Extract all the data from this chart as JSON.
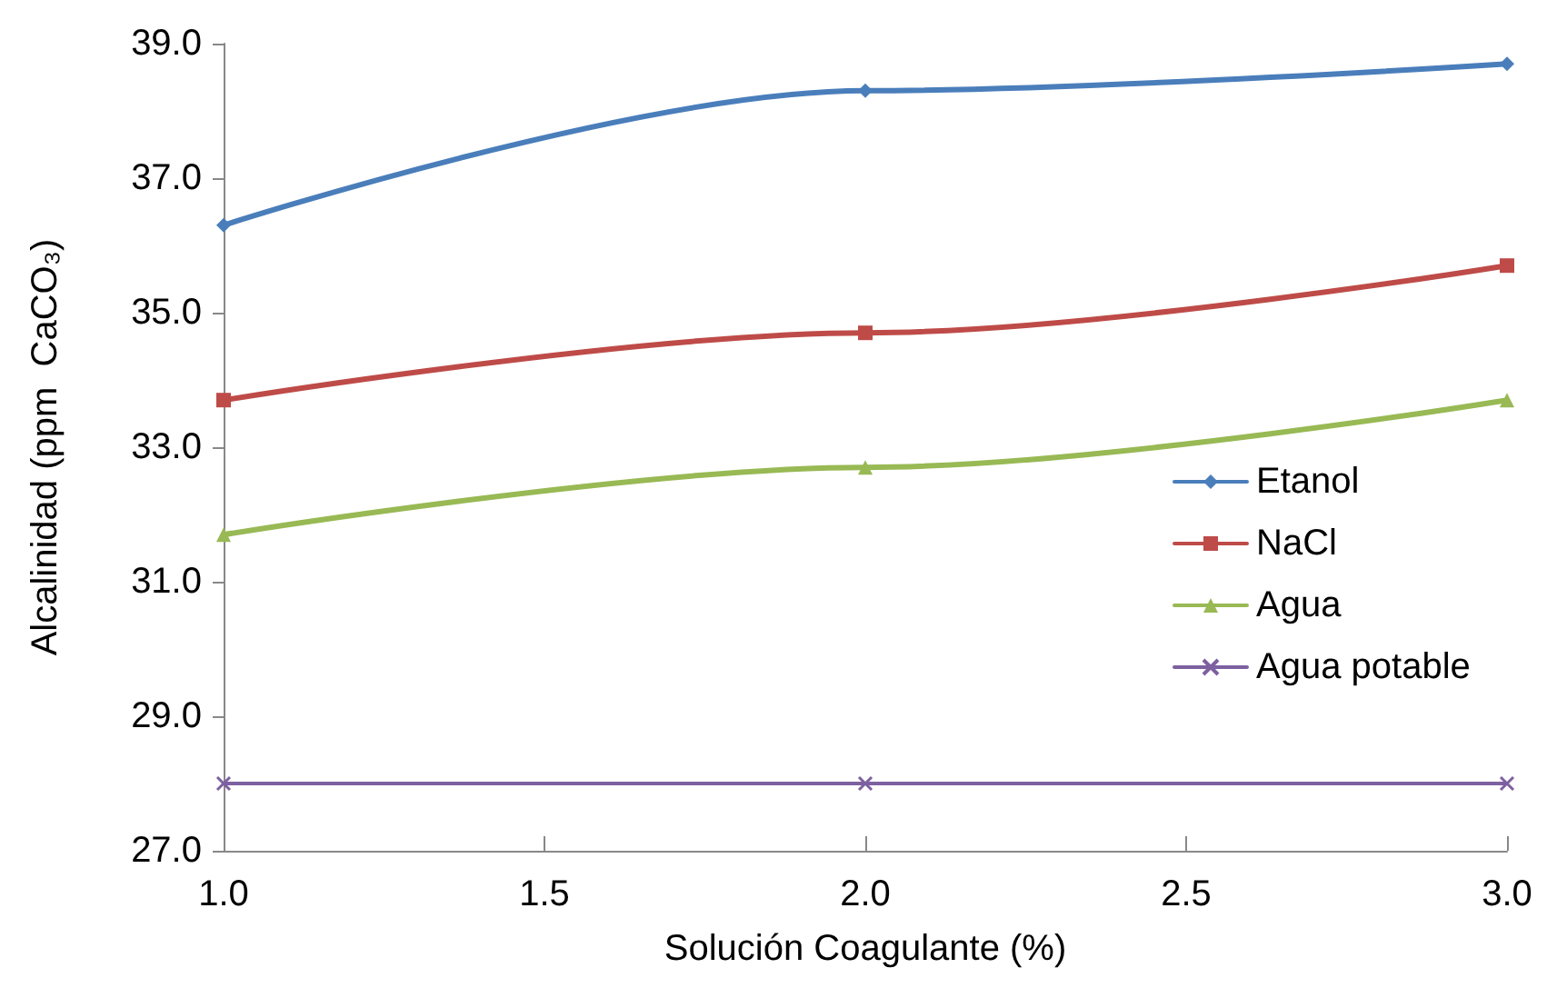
{
  "chart_data": {
    "type": "line",
    "xlabel": "Solución Coagulante (%)",
    "ylabel": "Alcalinidad (ppm  CaCO₃)",
    "x": [
      1.0,
      2.0,
      3.0
    ],
    "series": [
      {
        "name": "Etanol",
        "color": "#4a7ebb",
        "marker": "diamond",
        "values": [
          36.3,
          38.3,
          38.7
        ]
      },
      {
        "name": "NaCl",
        "color": "#be4b48",
        "marker": "square",
        "values": [
          33.7,
          34.7,
          35.7
        ]
      },
      {
        "name": "Agua",
        "color": "#98b954",
        "marker": "triangle",
        "values": [
          31.7,
          32.7,
          33.7
        ]
      },
      {
        "name": "Agua potable",
        "color": "#7d60a0",
        "marker": "cross",
        "values": [
          28.0,
          28.0,
          28.0
        ]
      }
    ],
    "xlim": [
      1.0,
      3.0
    ],
    "xticks": [
      {
        "value": 1,
        "label": "1.0"
      },
      {
        "value": 1.5,
        "label": "1.5"
      },
      {
        "value": 2,
        "label": "2.0"
      },
      {
        "value": 2.5,
        "label": "2.5"
      },
      {
        "value": 3,
        "label": "3.0"
      }
    ],
    "ylim": [
      27.0,
      39.0
    ],
    "yticks": [
      {
        "value": 27,
        "label": "27.0"
      },
      {
        "value": 29,
        "label": "29.0"
      },
      {
        "value": 31,
        "label": "31.0"
      },
      {
        "value": 33,
        "label": "33.0"
      },
      {
        "value": 35,
        "label": "35.0"
      },
      {
        "value": 37,
        "label": "37.0"
      },
      {
        "value": 39,
        "label": "39.0"
      }
    ],
    "grid": false,
    "legend": "right",
    "line_style": "solid"
  }
}
